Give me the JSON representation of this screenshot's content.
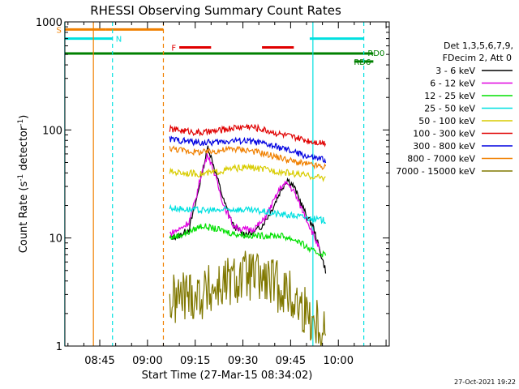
{
  "chart_data": {
    "type": "line",
    "title": "RHESSI Observing Summary Count Rates",
    "xlabel": "Start Time (27-Mar-15 08:34:02)",
    "ylabel": "Count Rate (s",
    "ylabel_sup": "-1",
    "ylabel_tail": " detector",
    "ylabel_sup2": "-1",
    "ylabel_end": ")",
    "footer": "27-Oct-2021 19:22",
    "y_scale": "log",
    "ylim": [
      1,
      1000
    ],
    "xlim": [
      "08:34:02",
      "10:16:00"
    ],
    "x_ticks": [
      "08:45",
      "09:00",
      "09:15",
      "09:30",
      "09:45",
      "10:00"
    ],
    "y_ticks": [
      "1",
      "10",
      "100",
      "1000"
    ],
    "legend": {
      "placement": "right",
      "header1": "Det 1,3,5,6,7,9,",
      "header2": "FDecim 2, Att 0",
      "entries": [
        {
          "label": "3 - 6 keV",
          "color": "#000000"
        },
        {
          "label": "6 - 12 keV",
          "color": "#e000e0"
        },
        {
          "label": "12 - 25 keV",
          "color": "#00e000"
        },
        {
          "label": "25 - 50 keV",
          "color": "#00e0e0"
        },
        {
          "label": "50 - 100 keV",
          "color": "#d8cc00"
        },
        {
          "label": "100 - 300 keV",
          "color": "#e00000"
        },
        {
          "label": "300 - 800 keV",
          "color": "#0000e0"
        },
        {
          "label": "800 - 7000 keV",
          "color": "#f08000"
        },
        {
          "label": "7000 - 15000 keV",
          "color": "#807800"
        }
      ]
    },
    "flags": [
      {
        "label": "S",
        "color": "#f08000",
        "segments": [
          [
            "08:34",
            "08:47"
          ],
          [
            "08:47",
            "09:05"
          ]
        ],
        "level": 850
      },
      {
        "label": "N",
        "color": "#00e0e0",
        "segments": [
          [
            "08:34",
            "08:49"
          ],
          [
            "09:51",
            "10:08"
          ]
        ],
        "level": 700
      },
      {
        "label": "F",
        "color": "#e00000",
        "segments": [
          [
            "09:10",
            "09:20"
          ],
          [
            "09:36",
            "09:46"
          ]
        ],
        "level": 580
      },
      {
        "label": "RD0",
        "color": "#008000",
        "segments": [
          [
            "08:34",
            "10:11"
          ]
        ],
        "level": 510
      },
      {
        "label": "RD6",
        "color": "#008000",
        "segments": [
          [
            "10:05",
            "10:11"
          ]
        ],
        "level": 430
      }
    ],
    "vlines": [
      {
        "time": "08:34",
        "color": "#00e0e0",
        "dash": false
      },
      {
        "time": "08:43",
        "color": "#f08000",
        "dash": false
      },
      {
        "time": "08:49",
        "color": "#00e0e0",
        "dash": true
      },
      {
        "time": "09:05",
        "color": "#f08000",
        "dash": true
      },
      {
        "time": "09:52",
        "color": "#00e0e0",
        "dash": false
      },
      {
        "time": "10:08",
        "color": "#00e0e0",
        "dash": true
      }
    ],
    "series": [
      {
        "name": "3 - 6 keV",
        "color": "#000000",
        "x": [
          "09:07",
          "09:10",
          "09:13",
          "09:15",
          "09:17",
          "09:19",
          "09:21",
          "09:24",
          "09:27",
          "09:30",
          "09:33",
          "09:36",
          "09:39",
          "09:42",
          "09:44",
          "09:46",
          "09:48",
          "09:50",
          "09:52",
          "09:54",
          "09:56"
        ],
        "y": [
          10,
          10.5,
          12,
          20,
          38,
          70,
          45,
          22,
          13,
          11,
          11,
          13,
          18,
          28,
          35,
          30,
          22,
          16,
          13,
          8,
          5
        ]
      },
      {
        "name": "6 - 12 keV",
        "color": "#e000e0",
        "x": [
          "09:07",
          "09:10",
          "09:13",
          "09:15",
          "09:17",
          "09:19",
          "09:21",
          "09:24",
          "09:27",
          "09:30",
          "09:33",
          "09:36",
          "09:39",
          "09:42",
          "09:44",
          "09:46",
          "09:48",
          "09:50",
          "09:52",
          "09:54"
        ],
        "y": [
          11,
          12,
          14,
          22,
          40,
          60,
          40,
          20,
          13,
          12,
          12,
          14,
          20,
          30,
          32,
          27,
          20,
          15,
          11,
          8
        ]
      },
      {
        "name": "12 - 25 keV",
        "color": "#00e000",
        "x": [
          "09:07",
          "09:12",
          "09:17",
          "09:22",
          "09:27",
          "09:32",
          "09:37",
          "09:42",
          "09:47",
          "09:52",
          "09:56"
        ],
        "y": [
          10,
          11,
          13,
          12,
          11,
          10.5,
          10.5,
          10.5,
          9.5,
          7.5,
          7
        ]
      },
      {
        "name": "25 - 50 keV",
        "color": "#00e0e0",
        "x": [
          "09:07",
          "09:12",
          "09:17",
          "09:22",
          "09:27",
          "09:32",
          "09:37",
          "09:42",
          "09:47",
          "09:52",
          "09:56"
        ],
        "y": [
          19,
          18.5,
          18,
          18,
          18.5,
          18,
          17.5,
          16.5,
          16,
          15,
          14.5
        ]
      },
      {
        "name": "50 - 100 keV",
        "color": "#d8cc00",
        "x": [
          "09:07",
          "09:12",
          "09:17",
          "09:22",
          "09:27",
          "09:32",
          "09:37",
          "09:42",
          "09:47",
          "09:52",
          "09:56"
        ],
        "y": [
          41,
          40,
          39,
          41,
          44,
          45,
          43,
          41,
          39,
          37,
          36
        ]
      },
      {
        "name": "100 - 300 keV",
        "color": "#e00000",
        "x": [
          "09:07",
          "09:12",
          "09:17",
          "09:22",
          "09:27",
          "09:32",
          "09:37",
          "09:42",
          "09:47",
          "09:52",
          "09:56"
        ],
        "y": [
          102,
          98,
          94,
          98,
          105,
          108,
          100,
          91,
          84,
          78,
          76
        ]
      },
      {
        "name": "300 - 800 keV",
        "color": "#0000e0",
        "x": [
          "09:07",
          "09:12",
          "09:17",
          "09:22",
          "09:27",
          "09:32",
          "09:37",
          "09:42",
          "09:47",
          "09:52",
          "09:56"
        ],
        "y": [
          82,
          79,
          76,
          77,
          80,
          79,
          74,
          68,
          61,
          55,
          53
        ]
      },
      {
        "name": "800 - 7000 keV",
        "color": "#f08000",
        "x": [
          "09:07",
          "09:12",
          "09:17",
          "09:22",
          "09:27",
          "09:32",
          "09:37",
          "09:42",
          "09:47",
          "09:52",
          "09:56"
        ],
        "y": [
          68,
          64,
          62,
          64,
          67,
          65,
          60,
          55,
          50,
          47,
          45
        ]
      },
      {
        "name": "7000 - 15000 keV",
        "color": "#807800",
        "x": [
          "09:07",
          "09:12",
          "09:17",
          "09:22",
          "09:27",
          "09:32",
          "09:37",
          "09:42",
          "09:47",
          "09:52",
          "09:56"
        ],
        "y": [
          2.5,
          3,
          3,
          3.5,
          4,
          4.5,
          4,
          3.5,
          2.5,
          1.8,
          1.5
        ]
      }
    ]
  }
}
